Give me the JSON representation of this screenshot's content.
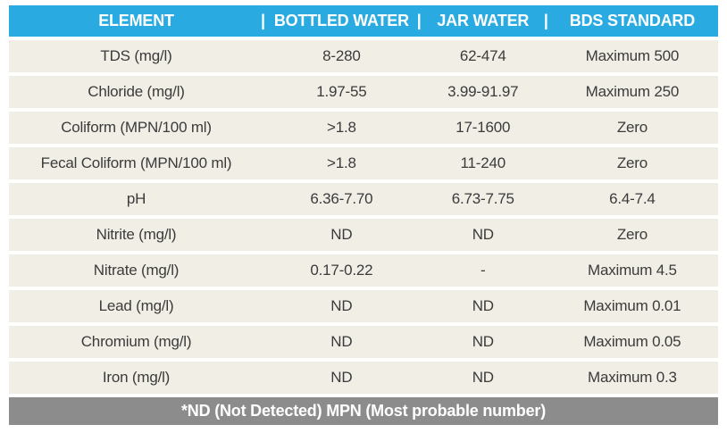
{
  "colors": {
    "header_bg": "#29ABE2",
    "header_text": "#FFFFFF",
    "row_bg": "#F1EEE6",
    "row_text": "#3B3B3B",
    "footer_bg": "#8C8C8C",
    "footer_text": "#FFFFFF",
    "page_bg": "#FFFFFF"
  },
  "ui": {
    "header_pipes": [
      "",
      "|",
      "|",
      "|"
    ]
  },
  "chart_data": {
    "type": "table",
    "title": "",
    "columns": [
      "ELEMENT",
      "BOTTLED WATER",
      "JAR WATER",
      "BDS STANDARD"
    ],
    "rows": [
      [
        "TDS (mg/l)",
        "8-280",
        "62-474",
        "Maximum 500"
      ],
      [
        "Chloride (mg/l)",
        "1.97-55",
        "3.99-91.97",
        "Maximum 250"
      ],
      [
        "Coliform (MPN/100 ml)",
        ">1.8",
        "17-1600",
        "Zero"
      ],
      [
        "Fecal Coliform (MPN/100 ml)",
        ">1.8",
        "11-240",
        "Zero"
      ],
      [
        "pH",
        "6.36-7.70",
        "6.73-7.75",
        "6.4-7.4"
      ],
      [
        "Nitrite (mg/l)",
        "ND",
        "ND",
        "Zero"
      ],
      [
        "Nitrate (mg/l)",
        "0.17-0.22",
        "-",
        "Maximum 4.5"
      ],
      [
        "Lead (mg/l)",
        "ND",
        "ND",
        "Maximum 0.01"
      ],
      [
        "Chromium (mg/l)",
        "ND",
        "ND",
        "Maximum 0.05"
      ],
      [
        "Iron (mg/l)",
        "ND",
        "ND",
        "Maximum 0.3"
      ]
    ],
    "footnote": "*ND (Not Detected) MPN (Most probable number)"
  }
}
